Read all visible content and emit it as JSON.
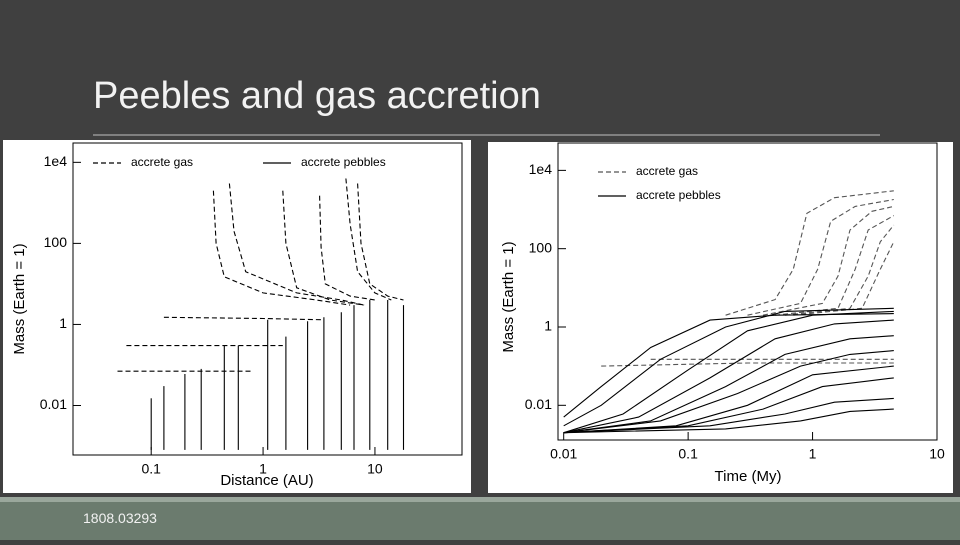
{
  "slide": {
    "title": "Peebles and gas accretion",
    "footer": "1808.03293"
  },
  "chart_data": [
    {
      "type": "line",
      "xlabel": "Distance (AU)",
      "ylabel": "Mass (Earth = 1)",
      "log": true,
      "legend": "top",
      "xlim": [
        0.02,
        60
      ],
      "ylim": [
        0.0006,
        30000
      ],
      "xticks": [
        0.1,
        1,
        10
      ],
      "yticks": [
        0.01,
        1,
        100,
        {
          "value": 10000,
          "label": "1e4"
        }
      ],
      "series": [
        {
          "name": "accrete gas",
          "color": "#000000",
          "dash": "5,3",
          "tracks": [
            {
              "x": [
                0.36,
                0.38,
                0.45,
                1,
                3,
                6
              ],
              "y": [
                2000,
                100,
                15,
                6,
                4,
                3
              ]
            },
            {
              "x": [
                0.5,
                0.55,
                0.7,
                2,
                5,
                8
              ],
              "y": [
                3000,
                200,
                20,
                6,
                4,
                3
              ]
            },
            {
              "x": [
                1.5,
                1.6,
                2,
                4,
                8
              ],
              "y": [
                2000,
                100,
                8,
                4,
                3
              ]
            },
            {
              "x": [
                3.2,
                3.3,
                3.6,
                6,
                10
              ],
              "y": [
                1500,
                80,
                10,
                5,
                4
              ]
            },
            {
              "x": [
                5.5,
                6,
                7,
                10,
                14
              ],
              "y": [
                4000,
                300,
                20,
                6,
                4
              ]
            },
            {
              "x": [
                7,
                7.5,
                9,
                13,
                18
              ],
              "y": [
                3000,
                100,
                10,
                5,
                4
              ]
            },
            {
              "x": [
                0.13,
                1,
                3.5
              ],
              "y": [
                1.5,
                1.4,
                1.3
              ]
            },
            {
              "x": [
                0.06,
                0.5,
                1.5
              ],
              "y": [
                0.3,
                0.3,
                0.3
              ]
            },
            {
              "x": [
                0.05,
                0.3,
                0.8
              ],
              "y": [
                0.07,
                0.07,
                0.07
              ]
            }
          ]
        },
        {
          "name": "accrete pebbles",
          "color": "#000000",
          "dash": "none",
          "tracks": [
            {
              "x": [
                0.1,
                0.1
              ],
              "y": [
                0.0008,
                0.015
              ]
            },
            {
              "x": [
                0.13,
                0.13
              ],
              "y": [
                0.0008,
                0.03
              ]
            },
            {
              "x": [
                0.2,
                0.2
              ],
              "y": [
                0.0008,
                0.06
              ]
            },
            {
              "x": [
                0.28,
                0.28
              ],
              "y": [
                0.0008,
                0.08
              ]
            },
            {
              "x": [
                0.45,
                0.45
              ],
              "y": [
                0.0008,
                0.3
              ]
            },
            {
              "x": [
                0.6,
                0.6
              ],
              "y": [
                0.0008,
                0.3
              ]
            },
            {
              "x": [
                1.1,
                1.1
              ],
              "y": [
                0.0008,
                1.3
              ]
            },
            {
              "x": [
                1.6,
                1.6
              ],
              "y": [
                0.0008,
                0.5
              ]
            },
            {
              "x": [
                2.5,
                2.5
              ],
              "y": [
                0.0008,
                1.2
              ]
            },
            {
              "x": [
                3.5,
                3.5
              ],
              "y": [
                0.0008,
                1.5
              ]
            },
            {
              "x": [
                5,
                5
              ],
              "y": [
                0.0008,
                2
              ]
            },
            {
              "x": [
                6.5,
                6.5
              ],
              "y": [
                0.0008,
                3
              ]
            },
            {
              "x": [
                9,
                9
              ],
              "y": [
                0.0008,
                4
              ]
            },
            {
              "x": [
                13,
                13
              ],
              "y": [
                0.0008,
                4
              ]
            },
            {
              "x": [
                18,
                18
              ],
              "y": [
                0.0008,
                3
              ]
            }
          ]
        }
      ]
    },
    {
      "type": "line",
      "xlabel": "Time (My)",
      "ylabel": "Mass (Earth = 1)",
      "log": true,
      "legend": "top-left",
      "xlim": [
        0.009,
        10
      ],
      "ylim": [
        0.0013,
        50000
      ],
      "xticks": [
        0.01,
        0.1,
        1,
        10
      ],
      "yticks": [
        0.01,
        1,
        100,
        {
          "value": 10000,
          "label": "1e4"
        }
      ],
      "series": [
        {
          "name": "accrete gas",
          "color": "#555555",
          "dash": "5,3",
          "tracks": [
            {
              "x": [
                0.2,
                0.5,
                0.7,
                0.9,
                1.5,
                4.5
              ],
              "y": [
                2,
                5,
                30,
                800,
                2000,
                3000
              ]
            },
            {
              "x": [
                0.3,
                0.8,
                1.1,
                1.4,
                2.2,
                4.5
              ],
              "y": [
                2,
                4,
                30,
                500,
                1200,
                1800
              ]
            },
            {
              "x": [
                0.4,
                1.2,
                1.6,
                2,
                3,
                4.5
              ],
              "y": [
                2,
                4,
                20,
                300,
                900,
                1200
              ]
            },
            {
              "x": [
                0.5,
                1.6,
                2.2,
                2.8,
                4.5
              ],
              "y": [
                2,
                3,
                30,
                300,
                700
              ]
            },
            {
              "x": [
                0.6,
                2,
                2.8,
                3.5,
                4.5
              ],
              "y": [
                2,
                3,
                20,
                150,
                400
              ]
            },
            {
              "x": [
                0.7,
                2.5,
                3.5,
                4.5
              ],
              "y": [
                2,
                3,
                30,
                150
              ]
            },
            {
              "x": [
                0.05,
                0.5,
                4.5
              ],
              "y": [
                0.15,
                0.15,
                0.15
              ]
            },
            {
              "x": [
                0.02,
                0.3,
                4.5
              ],
              "y": [
                0.1,
                0.12,
                0.12
              ]
            }
          ]
        },
        {
          "name": "accrete pebbles",
          "color": "#000000",
          "dash": "none",
          "tracks": [
            {
              "x": [
                0.01,
                0.03,
                0.1,
                0.3,
                1,
                4.5
              ],
              "y": [
                0.002,
                0.006,
                0.08,
                0.8,
                2,
                2.5
              ]
            },
            {
              "x": [
                0.01,
                0.04,
                0.15,
                0.5,
                1.5,
                4.5
              ],
              "y": [
                0.002,
                0.005,
                0.05,
                0.5,
                1.2,
                1.5
              ]
            },
            {
              "x": [
                0.01,
                0.05,
                0.2,
                0.6,
                2,
                4.5
              ],
              "y": [
                0.002,
                0.004,
                0.03,
                0.2,
                0.5,
                0.6
              ]
            },
            {
              "x": [
                0.01,
                0.06,
                0.25,
                0.8,
                2,
                4.5
              ],
              "y": [
                0.002,
                0.004,
                0.02,
                0.1,
                0.2,
                0.25
              ]
            },
            {
              "x": [
                0.01,
                0.08,
                0.3,
                1,
                4.5
              ],
              "y": [
                0.002,
                0.003,
                0.01,
                0.06,
                0.1
              ]
            },
            {
              "x": [
                0.01,
                0.1,
                0.4,
                1.2,
                4.5
              ],
              "y": [
                0.002,
                0.003,
                0.008,
                0.03,
                0.05
              ]
            },
            {
              "x": [
                0.01,
                0.15,
                0.6,
                1.5,
                4.5
              ],
              "y": [
                0.002,
                0.003,
                0.006,
                0.012,
                0.015
              ]
            },
            {
              "x": [
                0.01,
                0.2,
                0.8,
                2,
                4.5
              ],
              "y": [
                0.002,
                0.0025,
                0.004,
                0.007,
                0.008
              ]
            },
            {
              "x": [
                0.01,
                0.02,
                0.06,
                0.2,
                0.6,
                4.5
              ],
              "y": [
                0.003,
                0.01,
                0.15,
                1,
                2.5,
                3
              ]
            },
            {
              "x": [
                0.01,
                0.02,
                0.05,
                0.15,
                0.5,
                4.5
              ],
              "y": [
                0.005,
                0.03,
                0.3,
                1.5,
                2,
                2.2
              ]
            }
          ]
        }
      ]
    }
  ]
}
